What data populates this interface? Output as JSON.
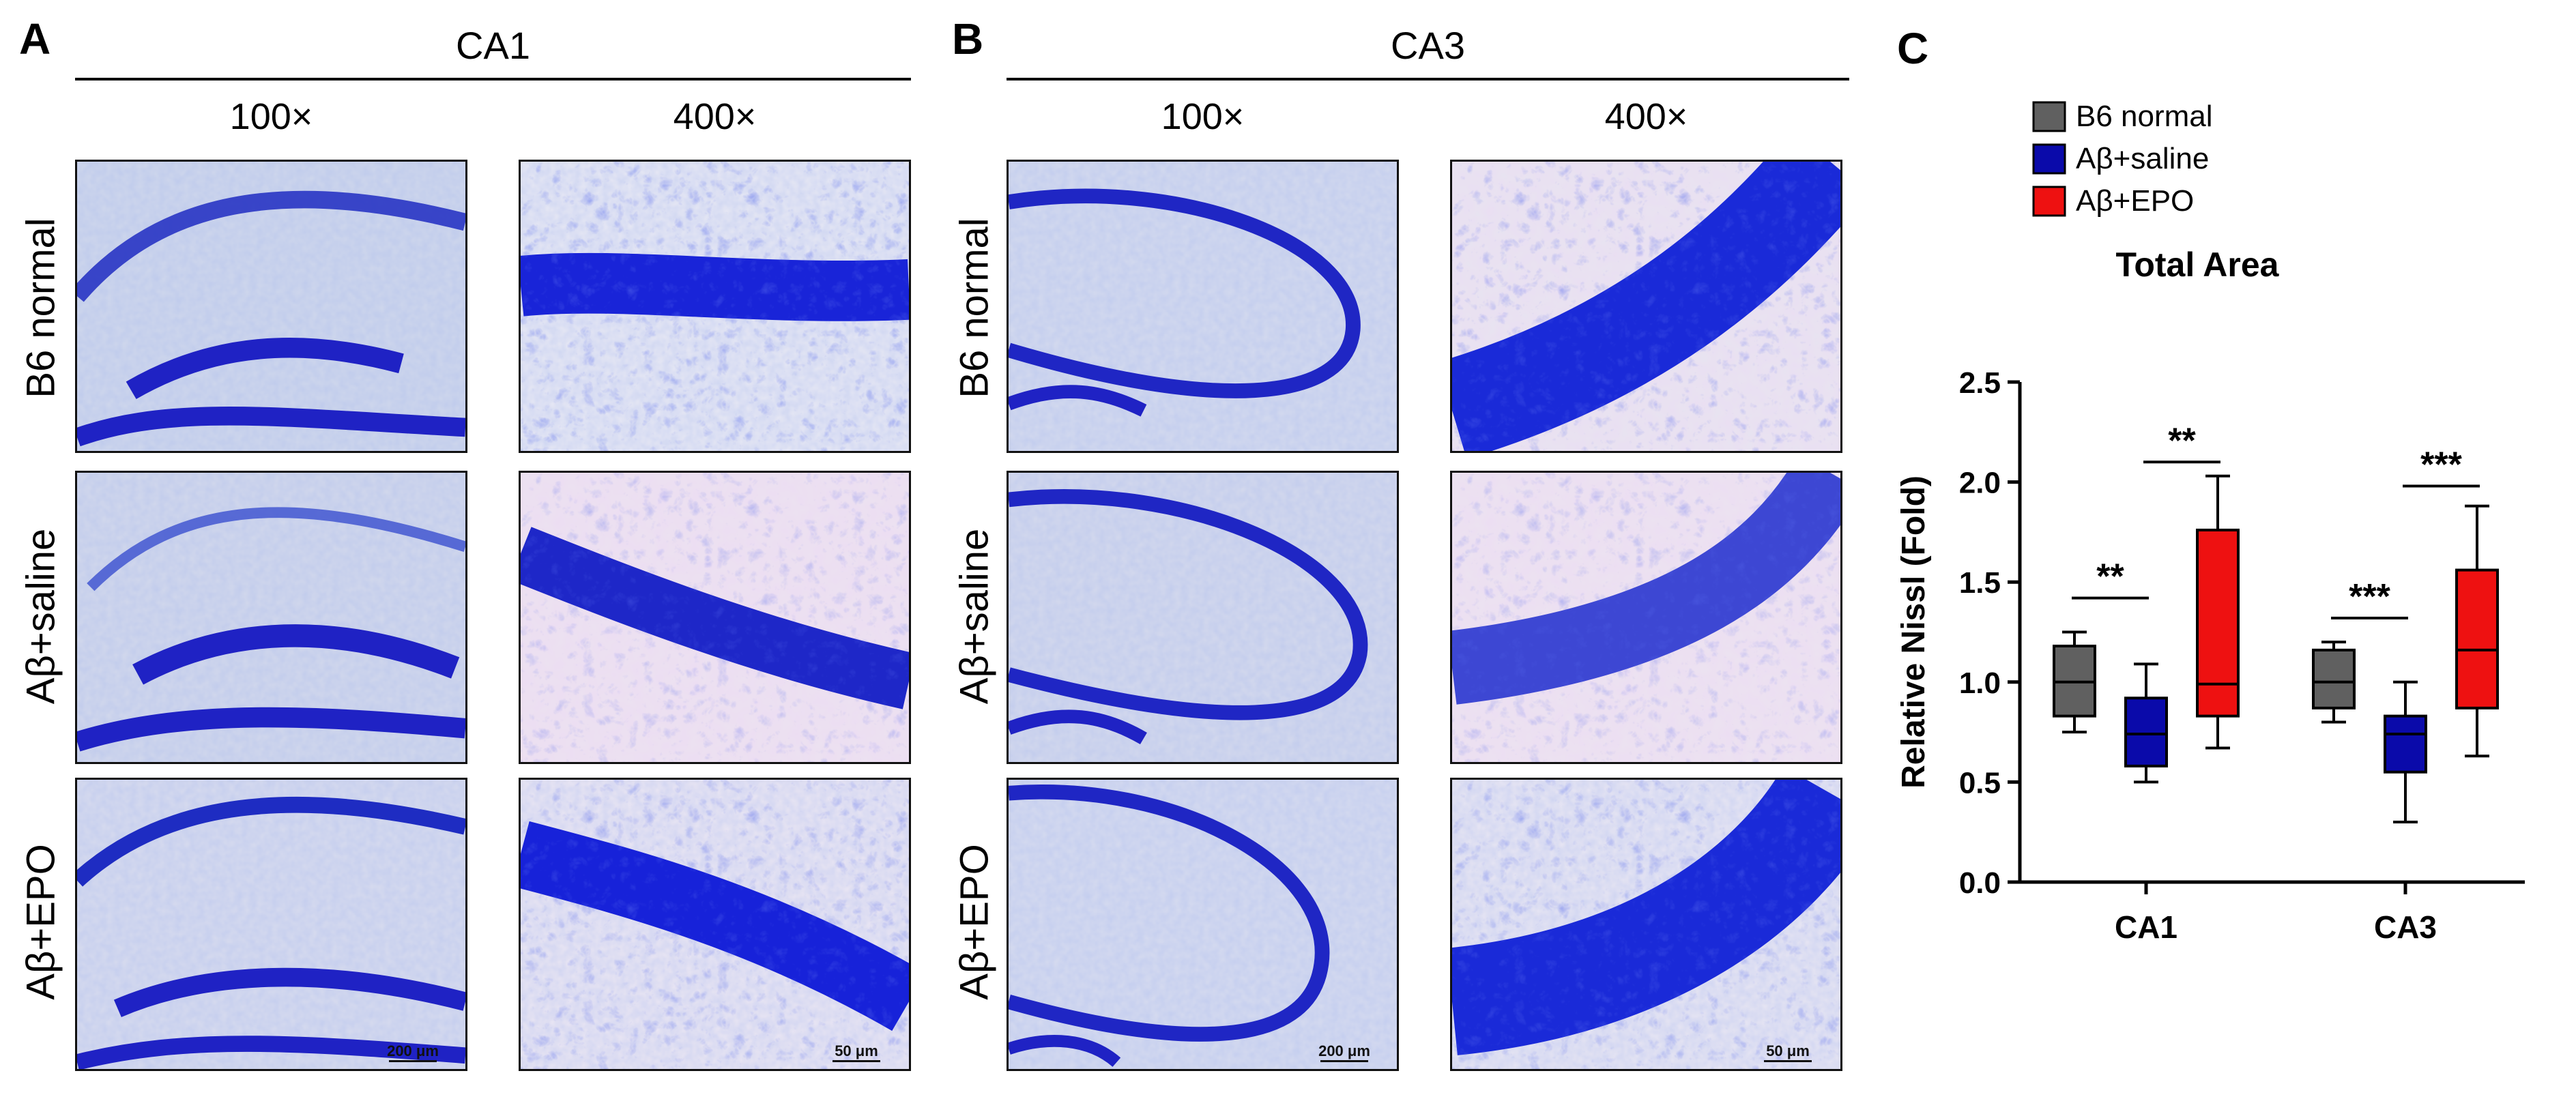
{
  "panels": {
    "A": {
      "letter": "A",
      "region": "CA1"
    },
    "B": {
      "letter": "B",
      "region": "CA3"
    },
    "C": {
      "letter": "C"
    }
  },
  "magnifications": [
    "100×",
    "400×"
  ],
  "row_labels": [
    "B6 normal",
    "Aβ+saline",
    "Aβ+EPO"
  ],
  "scale_bars": {
    "low": "200 μm",
    "high": "50 μm"
  },
  "colors": {
    "b6": "#606060",
    "saline": "#0a0aaa",
    "epo": "#ee1111",
    "stain_dark": "#1a22c8",
    "stain_bg": "#dfe2ef"
  },
  "chart_data": {
    "type": "box",
    "title": "Total Area",
    "ylabel": "Relative Nissl (Fold)",
    "xlabel": "",
    "ylim": [
      0,
      2.5
    ],
    "yticks": [
      "0.0",
      "0.5",
      "1.0",
      "1.5",
      "2.0",
      "2.5"
    ],
    "categories": [
      "CA1",
      "CA3"
    ],
    "legend": [
      "B6 normal",
      "Aβ+saline",
      "Aβ+EPO"
    ],
    "series": [
      {
        "name": "B6 normal",
        "color": "#606060",
        "boxes": [
          {
            "min": 0.75,
            "q1": 0.83,
            "median": 1.0,
            "q3": 1.18,
            "max": 1.25
          },
          {
            "min": 0.8,
            "q1": 0.87,
            "median": 1.0,
            "q3": 1.16,
            "max": 1.2
          }
        ]
      },
      {
        "name": "Aβ+saline",
        "color": "#0a0aaa",
        "boxes": [
          {
            "min": 0.5,
            "q1": 0.58,
            "median": 0.74,
            "q3": 0.92,
            "max": 1.09
          },
          {
            "min": 0.3,
            "q1": 0.55,
            "median": 0.74,
            "q3": 0.83,
            "max": 1.0
          }
        ]
      },
      {
        "name": "Aβ+EPO",
        "color": "#ee1111",
        "boxes": [
          {
            "min": 0.67,
            "q1": 0.83,
            "median": 0.99,
            "q3": 1.76,
            "max": 2.03
          },
          {
            "min": 0.63,
            "q1": 0.87,
            "median": 1.16,
            "q3": 1.56,
            "max": 1.88
          }
        ]
      }
    ],
    "significance": [
      {
        "category": "CA1",
        "pair": [
          "B6 normal",
          "Aβ+saline"
        ],
        "label": "**",
        "y": 1.42
      },
      {
        "category": "CA1",
        "pair": [
          "Aβ+saline",
          "Aβ+EPO"
        ],
        "label": "**",
        "y": 2.1
      },
      {
        "category": "CA3",
        "pair": [
          "B6 normal",
          "Aβ+saline"
        ],
        "label": "***",
        "y": 1.32
      },
      {
        "category": "CA3",
        "pair": [
          "Aβ+saline",
          "Aβ+EPO"
        ],
        "label": "***",
        "y": 1.98
      }
    ]
  }
}
